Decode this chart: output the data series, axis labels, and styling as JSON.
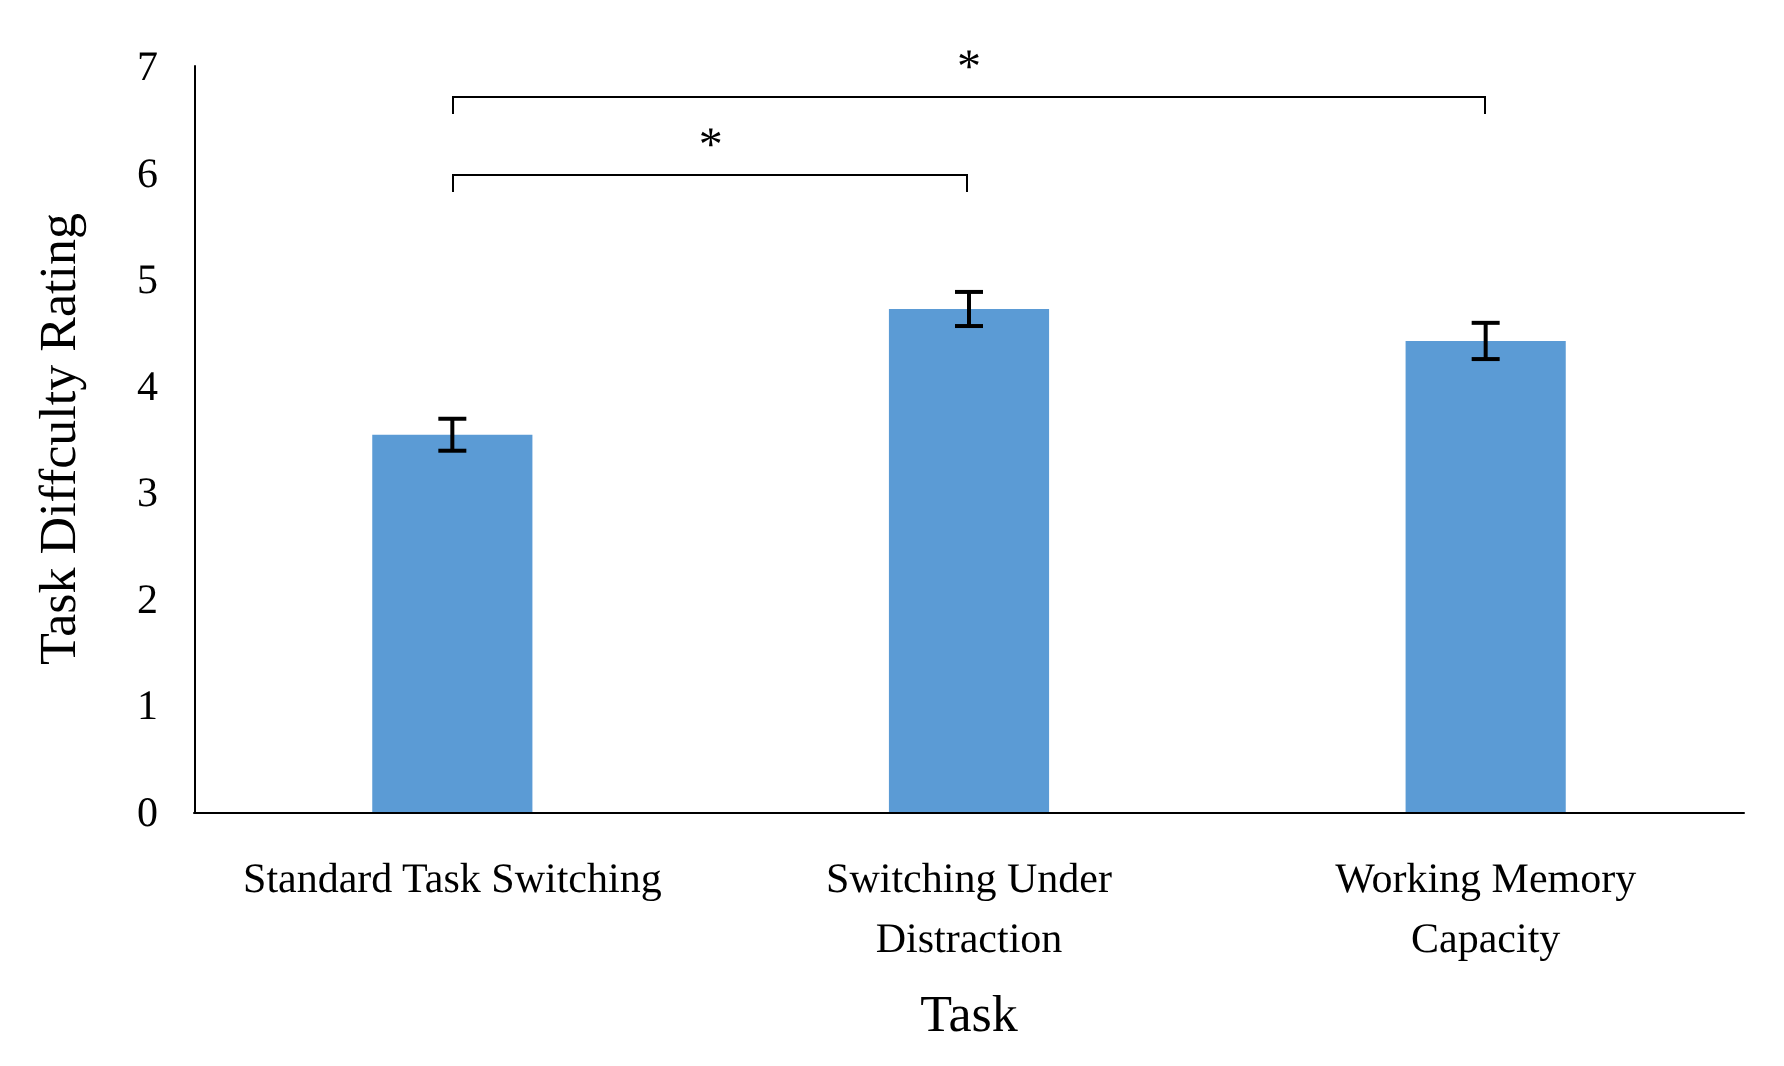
{
  "chart_data": {
    "type": "bar",
    "xlabel": "Task",
    "ylabel": "Task Diffculty Rating",
    "categories": [
      "Standard Task Switching",
      "Switching Under\nDistraction",
      "Working Memory\nCapacity"
    ],
    "values": [
      3.54,
      4.72,
      4.42
    ],
    "errors": [
      0.15,
      0.16,
      0.17
    ],
    "color": "#5b9bd5",
    "ylim": [
      0,
      7
    ],
    "yticks": [
      0,
      1,
      2,
      3,
      4,
      5,
      6,
      7
    ],
    "annotations": [
      "*",
      "*"
    ]
  }
}
